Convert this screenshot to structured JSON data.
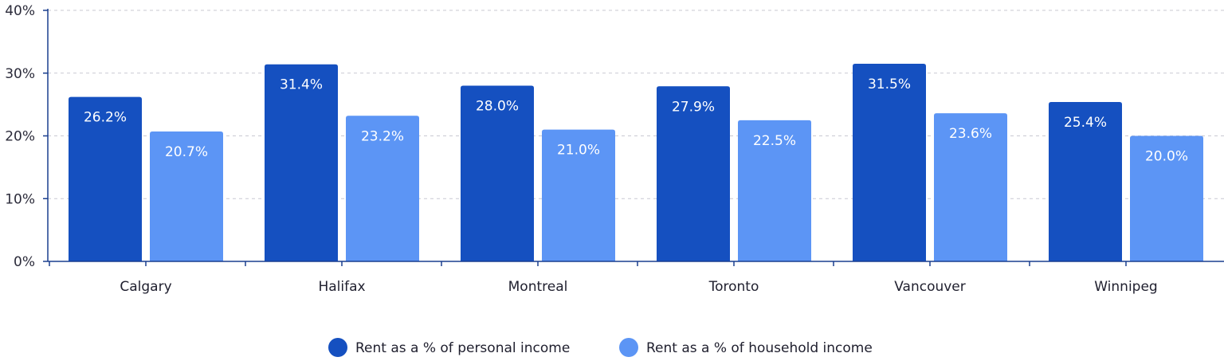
{
  "chart_data": {
    "type": "bar",
    "categories": [
      "Calgary",
      "Halifax",
      "Montreal",
      "Toronto",
      "Vancouver",
      "Winnipeg"
    ],
    "series": [
      {
        "name": "Rent as a % of personal income",
        "color": "#1550c0",
        "values": [
          26.2,
          31.4,
          28.0,
          27.9,
          31.5,
          25.4
        ],
        "labels": [
          "26.2%",
          "31.4%",
          "28.0%",
          "27.9%",
          "31.5%",
          "25.4%"
        ]
      },
      {
        "name": "Rent as a % of household income",
        "color": "#5c95f5",
        "values": [
          20.7,
          23.2,
          21.0,
          22.5,
          23.6,
          20.0
        ],
        "labels": [
          "20.7%",
          "23.2%",
          "21.0%",
          "22.5%",
          "23.6%",
          "20.0%"
        ]
      }
    ],
    "yticks": [
      0,
      10,
      20,
      30,
      40
    ],
    "ytick_labels": [
      "0%",
      "10%",
      "20%",
      "30%",
      "40%"
    ],
    "ylim": [
      0,
      40
    ],
    "grid": true,
    "legend_position": "bottom-center",
    "axis_color": "#1a3f8f",
    "grid_color": "#c9c9d2"
  }
}
